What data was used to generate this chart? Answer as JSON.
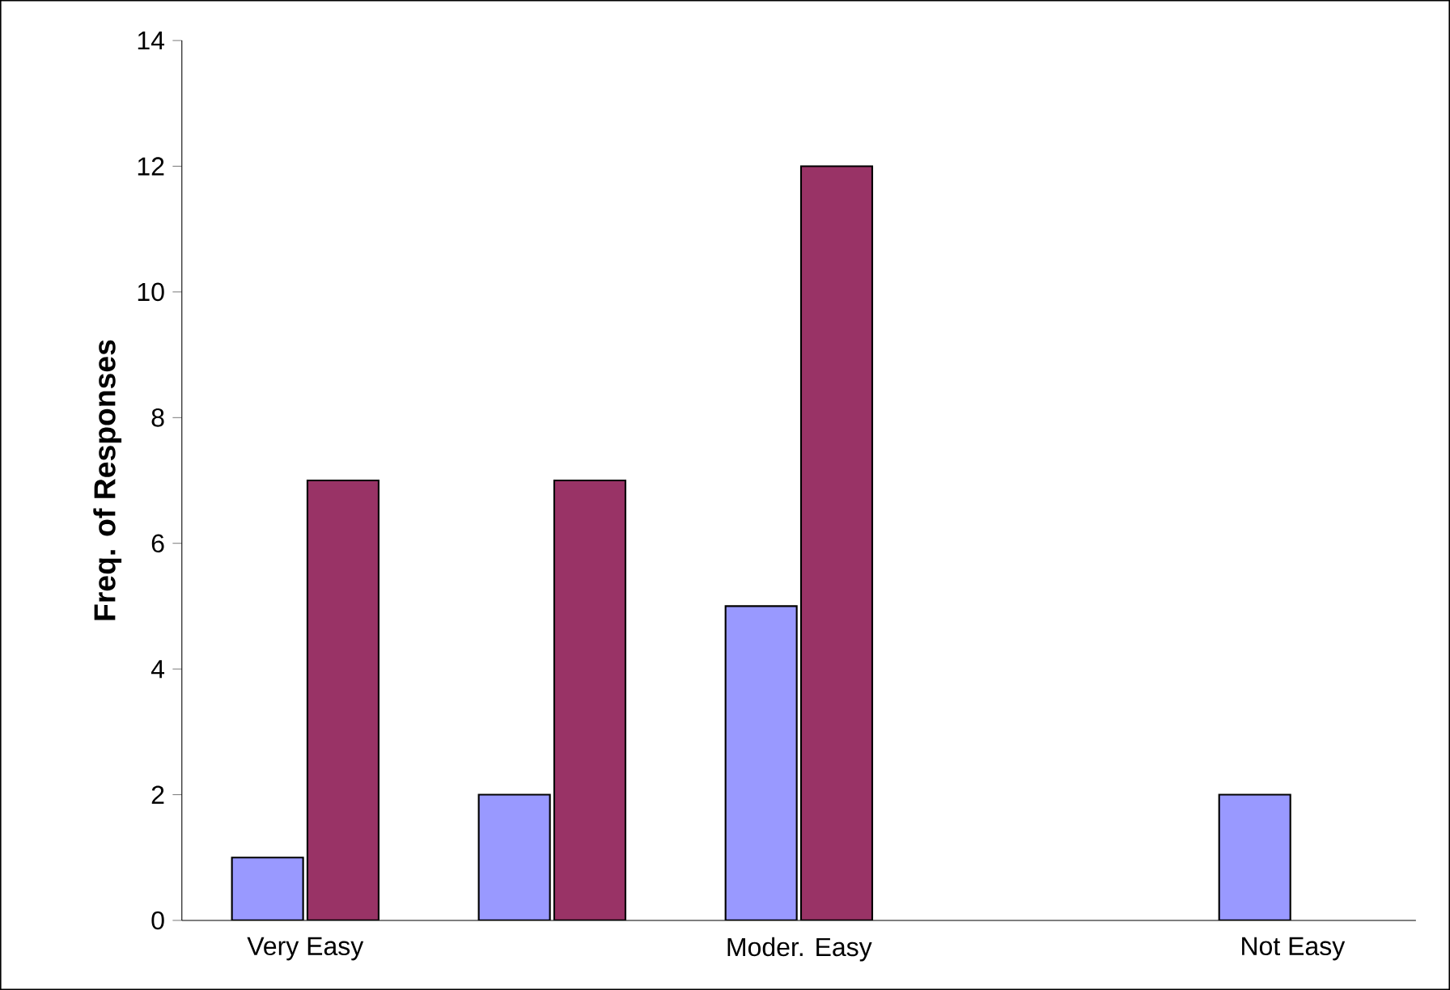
{
  "chart_data": {
    "type": "bar",
    "ylabel": "Freq. of Responses",
    "categories": [
      "Very Easy",
      null,
      "Moder. Easy",
      null,
      "Not Easy"
    ],
    "series": [
      {
        "color": "#9999ff",
        "values": [
          1,
          2,
          5,
          null,
          2
        ]
      },
      {
        "color": "#993366",
        "values": [
          7,
          7,
          12,
          null,
          null
        ]
      }
    ],
    "ylim": [
      0,
      14
    ],
    "yticks": [
      0,
      2,
      4,
      6,
      8,
      10,
      12,
      14
    ],
    "grid": false
  }
}
